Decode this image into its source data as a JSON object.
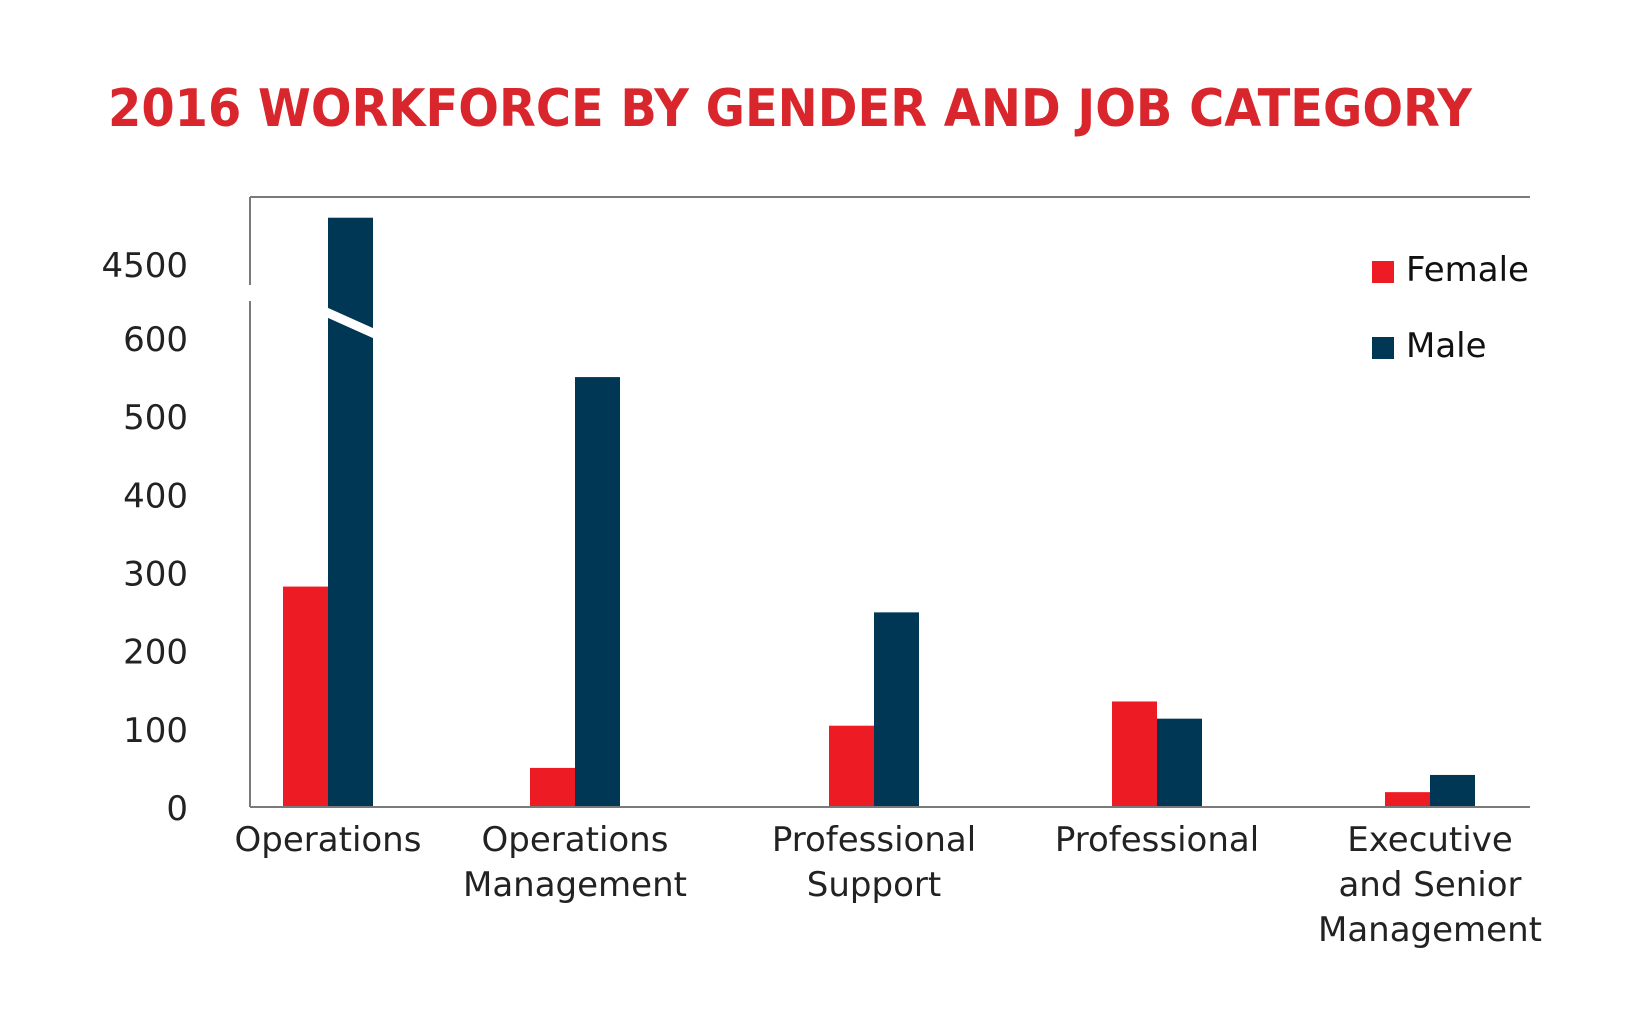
{
  "chart_data": {
    "type": "bar",
    "title": "2016 WORKFORCE BY GENDER AND JOB CATEGORY",
    "categories": [
      [
        "Operations"
      ],
      [
        "Operations",
        "Management"
      ],
      [
        "Professional",
        "Support"
      ],
      [
        "Professional"
      ],
      [
        "Executive",
        "and Senior",
        "Management"
      ]
    ],
    "series": [
      {
        "name": "Female",
        "color": "#ed1c24",
        "values": [
          282,
          50,
          104,
          135,
          19
        ]
      },
      {
        "name": "Male",
        "color": "#003755",
        "values": [
          4800,
          550,
          249,
          113,
          41
        ]
      }
    ],
    "yticks": [
      "0",
      "100",
      "200",
      "300",
      "400",
      "500",
      "600",
      "4500"
    ],
    "ylim": [
      0,
      650
    ],
    "axis_break": {
      "from": 650,
      "to": 4500,
      "upper_max": 4850
    },
    "legend_position": "top-right",
    "grid": false,
    "colors": {
      "title": "#d9262c",
      "axis": "#7a7a7a",
      "text": "#222222"
    }
  }
}
